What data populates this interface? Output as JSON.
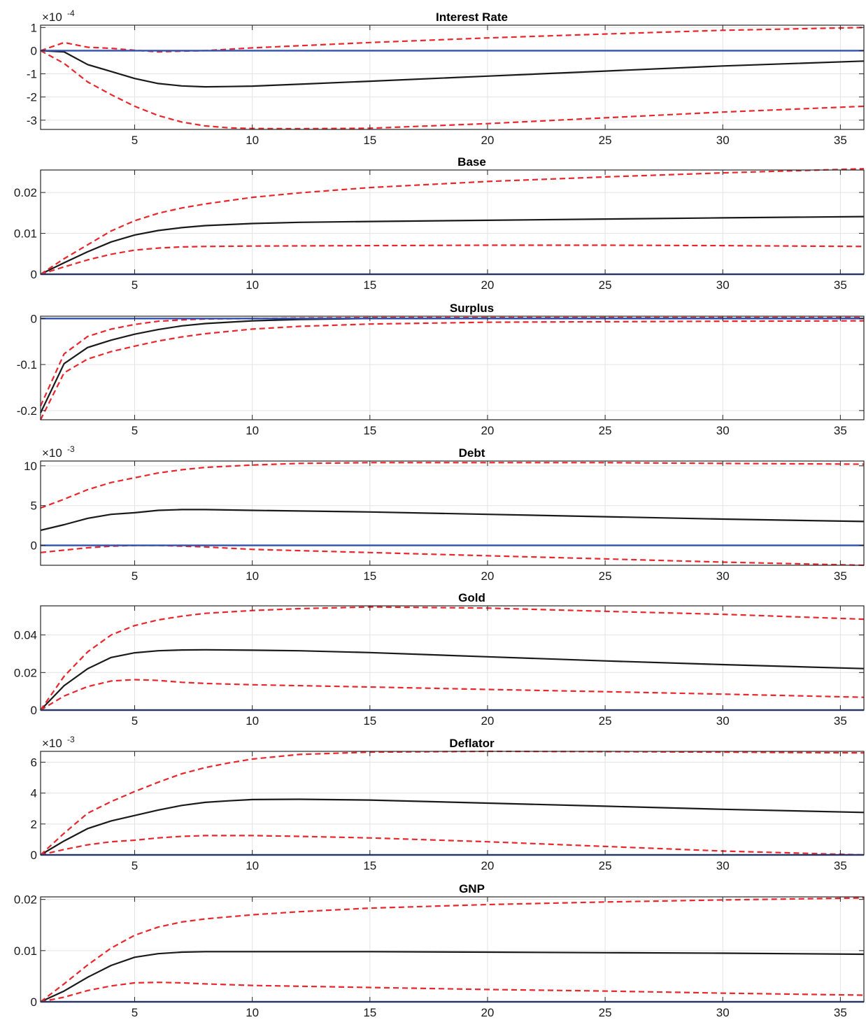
{
  "chart_data": [
    {
      "type": "line",
      "title": "Interest Rate",
      "multiplier": {
        "base": "×10",
        "exponent": "-4"
      },
      "xlim": [
        1,
        36
      ],
      "ylim": [
        -3.4,
        1.1
      ],
      "xticks": [
        5,
        10,
        15,
        20,
        25,
        30,
        35
      ],
      "yticks": [
        -3,
        -2,
        -1,
        0,
        1
      ],
      "ytick_labels": [
        "-3",
        "-2",
        "-1",
        "0",
        "1"
      ],
      "grid": true,
      "series": [
        {
          "style": "response",
          "color": "#1a1a1a",
          "dashed": false,
          "x": [
            1,
            2,
            3,
            4,
            5,
            6,
            7,
            8,
            9,
            10,
            12,
            15,
            20,
            25,
            30,
            36
          ],
          "y": [
            0,
            -0.05,
            -0.6,
            -0.9,
            -1.2,
            -1.42,
            -1.52,
            -1.56,
            -1.55,
            -1.53,
            -1.45,
            -1.32,
            -1.1,
            -0.88,
            -0.66,
            -0.45
          ]
        },
        {
          "style": "upper",
          "color": "#e8262c",
          "dashed": true,
          "x": [
            1,
            2,
            3,
            4,
            5,
            6,
            7,
            8,
            10,
            15,
            20,
            25,
            30,
            36
          ],
          "y": [
            0,
            0.35,
            0.15,
            0.1,
            0.02,
            -0.05,
            -0.02,
            0.0,
            0.12,
            0.35,
            0.55,
            0.72,
            0.88,
            1.0
          ]
        },
        {
          "style": "lower",
          "color": "#e8262c",
          "dashed": true,
          "x": [
            1,
            2,
            3,
            4,
            5,
            6,
            7,
            8,
            9,
            10,
            12,
            15,
            20,
            25,
            30,
            36
          ],
          "y": [
            0,
            -0.55,
            -1.35,
            -1.9,
            -2.4,
            -2.8,
            -3.08,
            -3.25,
            -3.33,
            -3.36,
            -3.37,
            -3.35,
            -3.15,
            -2.9,
            -2.65,
            -2.4
          ]
        },
        {
          "style": "zero",
          "color": "#3050b0",
          "dashed": false,
          "x": [
            1,
            36
          ],
          "y": [
            0,
            0
          ]
        }
      ]
    },
    {
      "type": "line",
      "title": "Base",
      "xlim": [
        1,
        36
      ],
      "ylim": [
        0,
        0.0255
      ],
      "xticks": [
        5,
        10,
        15,
        20,
        25,
        30,
        35
      ],
      "yticks": [
        0,
        0.01,
        0.02
      ],
      "ytick_labels": [
        "0",
        "0.01",
        "0.02"
      ],
      "grid": true,
      "series": [
        {
          "style": "response",
          "color": "#1a1a1a",
          "dashed": false,
          "x": [
            1,
            2,
            3,
            4,
            5,
            6,
            7,
            8,
            10,
            12,
            15,
            20,
            25,
            30,
            36
          ],
          "y": [
            0,
            0.0028,
            0.0055,
            0.0079,
            0.0096,
            0.0107,
            0.0114,
            0.0119,
            0.0124,
            0.0127,
            0.0129,
            0.0132,
            0.0135,
            0.0138,
            0.0141
          ]
        },
        {
          "style": "upper",
          "color": "#e8262c",
          "dashed": true,
          "x": [
            1,
            2,
            3,
            4,
            5,
            6,
            7,
            8,
            10,
            12,
            15,
            20,
            25,
            30,
            36
          ],
          "y": [
            0,
            0.0038,
            0.0072,
            0.0106,
            0.0131,
            0.0149,
            0.0162,
            0.0172,
            0.0188,
            0.0199,
            0.0212,
            0.0227,
            0.0238,
            0.0248,
            0.0258
          ]
        },
        {
          "style": "lower",
          "color": "#e8262c",
          "dashed": true,
          "x": [
            1,
            2,
            3,
            4,
            5,
            6,
            7,
            8,
            10,
            15,
            20,
            25,
            30,
            36
          ],
          "y": [
            0,
            0.0018,
            0.0035,
            0.0049,
            0.0059,
            0.0064,
            0.0067,
            0.0068,
            0.0069,
            0.007,
            0.0071,
            0.0071,
            0.007,
            0.0068
          ]
        },
        {
          "style": "zero",
          "color": "#3050b0",
          "dashed": false,
          "x": [
            1,
            36
          ],
          "y": [
            0,
            0
          ]
        }
      ]
    },
    {
      "type": "line",
      "title": "Surplus",
      "xlim": [
        1,
        36
      ],
      "ylim": [
        -0.22,
        0.005
      ],
      "xticks": [
        5,
        10,
        15,
        20,
        25,
        30,
        35
      ],
      "yticks": [
        -0.2,
        -0.1,
        0
      ],
      "ytick_labels": [
        "-0.2",
        "-0.1",
        "0"
      ],
      "grid": true,
      "series": [
        {
          "style": "response",
          "color": "#1a1a1a",
          "dashed": false,
          "x": [
            1,
            2,
            3,
            4,
            5,
            6,
            7,
            8,
            10,
            12,
            15,
            20,
            36
          ],
          "y": [
            -0.205,
            -0.098,
            -0.063,
            -0.047,
            -0.034,
            -0.024,
            -0.016,
            -0.011,
            -0.005,
            -0.002,
            0,
            0,
            0
          ]
        },
        {
          "style": "upper",
          "color": "#e8262c",
          "dashed": true,
          "x": [
            1,
            2,
            3,
            4,
            5,
            6,
            7,
            8,
            10,
            12,
            15,
            20,
            36
          ],
          "y": [
            -0.19,
            -0.077,
            -0.039,
            -0.023,
            -0.013,
            -0.006,
            -0.003,
            -0.001,
            0.0,
            0.001,
            0.002,
            0.002,
            0.002
          ]
        },
        {
          "style": "lower",
          "color": "#e8262c",
          "dashed": true,
          "x": [
            1,
            2,
            3,
            4,
            5,
            6,
            7,
            8,
            10,
            12,
            15,
            20,
            25,
            30,
            36
          ],
          "y": [
            -0.22,
            -0.118,
            -0.088,
            -0.072,
            -0.06,
            -0.049,
            -0.04,
            -0.033,
            -0.023,
            -0.017,
            -0.012,
            -0.008,
            -0.007,
            -0.006,
            -0.005
          ]
        },
        {
          "style": "zero",
          "color": "#3050b0",
          "dashed": false,
          "x": [
            1,
            36
          ],
          "y": [
            0,
            0
          ]
        }
      ]
    },
    {
      "type": "line",
      "title": "Debt",
      "multiplier": {
        "base": "×10",
        "exponent": "-3"
      },
      "xlim": [
        1,
        36
      ],
      "ylim": [
        -2.5,
        10.6
      ],
      "xticks": [
        5,
        10,
        15,
        20,
        25,
        30,
        35
      ],
      "yticks": [
        0,
        5,
        10
      ],
      "ytick_labels": [
        "0",
        "5",
        "10"
      ],
      "grid": true,
      "series": [
        {
          "style": "response",
          "color": "#1a1a1a",
          "dashed": false,
          "x": [
            1,
            2,
            3,
            4,
            5,
            6,
            7,
            8,
            10,
            15,
            20,
            25,
            30,
            36
          ],
          "y": [
            1.9,
            2.6,
            3.4,
            3.9,
            4.1,
            4.4,
            4.5,
            4.5,
            4.4,
            4.2,
            3.9,
            3.6,
            3.3,
            3.0
          ]
        },
        {
          "style": "upper",
          "color": "#e8262c",
          "dashed": true,
          "x": [
            1,
            2,
            3,
            4,
            5,
            6,
            7,
            8,
            10,
            12,
            15,
            20,
            25,
            30,
            36
          ],
          "y": [
            4.7,
            5.8,
            7.0,
            7.9,
            8.5,
            9.1,
            9.5,
            9.8,
            10.1,
            10.3,
            10.4,
            10.4,
            10.4,
            10.3,
            10.2
          ]
        },
        {
          "style": "lower",
          "color": "#e8262c",
          "dashed": true,
          "x": [
            1,
            2,
            3,
            4,
            5,
            6,
            7,
            8,
            10,
            15,
            20,
            25,
            30,
            36
          ],
          "y": [
            -0.9,
            -0.6,
            -0.3,
            -0.1,
            0.0,
            0.0,
            -0.1,
            -0.2,
            -0.5,
            -0.9,
            -1.3,
            -1.7,
            -2.1,
            -2.5
          ]
        },
        {
          "style": "zero",
          "color": "#3050b0",
          "dashed": false,
          "x": [
            1,
            36
          ],
          "y": [
            0,
            0
          ]
        }
      ]
    },
    {
      "type": "line",
      "title": "Gold",
      "xlim": [
        1,
        36
      ],
      "ylim": [
        0,
        0.0555
      ],
      "xticks": [
        5,
        10,
        15,
        20,
        25,
        30,
        35
      ],
      "yticks": [
        0,
        0.02,
        0.04
      ],
      "ytick_labels": [
        "0",
        "0.02",
        "0.04"
      ],
      "grid": true,
      "series": [
        {
          "style": "response",
          "color": "#1a1a1a",
          "dashed": false,
          "x": [
            1,
            2,
            3,
            4,
            5,
            6,
            7,
            8,
            10,
            12,
            15,
            20,
            25,
            30,
            36
          ],
          "y": [
            0,
            0.013,
            0.022,
            0.028,
            0.0305,
            0.0316,
            0.032,
            0.0321,
            0.0319,
            0.0316,
            0.0306,
            0.0284,
            0.0262,
            0.0242,
            0.0221
          ]
        },
        {
          "style": "upper",
          "color": "#e8262c",
          "dashed": true,
          "x": [
            1,
            2,
            3,
            4,
            5,
            6,
            7,
            8,
            10,
            12,
            15,
            20,
            25,
            30,
            36
          ],
          "y": [
            0,
            0.018,
            0.031,
            0.04,
            0.045,
            0.048,
            0.05,
            0.0515,
            0.053,
            0.054,
            0.0549,
            0.0543,
            0.0526,
            0.051,
            0.0484
          ]
        },
        {
          "style": "lower",
          "color": "#e8262c",
          "dashed": true,
          "x": [
            1,
            2,
            3,
            4,
            5,
            6,
            7,
            8,
            10,
            15,
            20,
            25,
            30,
            36
          ],
          "y": [
            0,
            0.0075,
            0.0125,
            0.0155,
            0.0162,
            0.0158,
            0.0148,
            0.0142,
            0.0135,
            0.0123,
            0.011,
            0.0098,
            0.0085,
            0.0068
          ]
        },
        {
          "style": "zero",
          "color": "#3050b0",
          "dashed": false,
          "x": [
            1,
            36
          ],
          "y": [
            0,
            0
          ]
        }
      ]
    },
    {
      "type": "line",
      "title": "Deflator",
      "multiplier": {
        "base": "×10",
        "exponent": "-3"
      },
      "xlim": [
        1,
        36
      ],
      "ylim": [
        0,
        6.7
      ],
      "xticks": [
        5,
        10,
        15,
        20,
        25,
        30,
        35
      ],
      "yticks": [
        0,
        2,
        4,
        6
      ],
      "ytick_labels": [
        "0",
        "2",
        "4",
        "6"
      ],
      "grid": true,
      "series": [
        {
          "style": "response",
          "color": "#1a1a1a",
          "dashed": false,
          "x": [
            1,
            2,
            3,
            4,
            5,
            6,
            7,
            8,
            9,
            10,
            12,
            15,
            20,
            25,
            30,
            36
          ],
          "y": [
            0,
            0.9,
            1.7,
            2.2,
            2.55,
            2.9,
            3.2,
            3.4,
            3.5,
            3.58,
            3.6,
            3.55,
            3.35,
            3.15,
            2.95,
            2.75
          ]
        },
        {
          "style": "upper",
          "color": "#e8262c",
          "dashed": true,
          "x": [
            1,
            2,
            3,
            4,
            5,
            6,
            7,
            8,
            9,
            10,
            12,
            15,
            20,
            25,
            30,
            36
          ],
          "y": [
            0,
            1.4,
            2.7,
            3.45,
            4.1,
            4.7,
            5.25,
            5.65,
            5.95,
            6.2,
            6.5,
            6.65,
            6.7,
            6.68,
            6.65,
            6.6
          ]
        },
        {
          "style": "lower",
          "color": "#e8262c",
          "dashed": true,
          "x": [
            1,
            2,
            3,
            4,
            5,
            6,
            7,
            8,
            10,
            12,
            15,
            20,
            25,
            30,
            36
          ],
          "y": [
            0,
            0.35,
            0.65,
            0.85,
            0.95,
            1.1,
            1.2,
            1.25,
            1.25,
            1.2,
            1.1,
            0.85,
            0.55,
            0.25,
            0.0
          ]
        },
        {
          "style": "zero",
          "color": "#3050b0",
          "dashed": false,
          "x": [
            1,
            36
          ],
          "y": [
            0,
            0
          ]
        }
      ]
    },
    {
      "type": "line",
      "title": "GNP",
      "xlim": [
        1,
        36
      ],
      "ylim": [
        0,
        0.0205
      ],
      "xticks": [
        5,
        10,
        15,
        20,
        25,
        30,
        35
      ],
      "yticks": [
        0,
        0.01,
        0.02
      ],
      "ytick_labels": [
        "0",
        "0.01",
        "0.02"
      ],
      "grid": true,
      "series": [
        {
          "style": "response",
          "color": "#1a1a1a",
          "dashed": false,
          "x": [
            1,
            2,
            3,
            4,
            5,
            6,
            7,
            8,
            10,
            15,
            20,
            25,
            30,
            36
          ],
          "y": [
            0,
            0.0021,
            0.0048,
            0.0071,
            0.0087,
            0.0094,
            0.0097,
            0.0098,
            0.0098,
            0.0098,
            0.0097,
            0.0096,
            0.0095,
            0.0093
          ]
        },
        {
          "style": "upper",
          "color": "#e8262c",
          "dashed": true,
          "x": [
            1,
            2,
            3,
            4,
            5,
            6,
            7,
            8,
            10,
            12,
            15,
            20,
            25,
            30,
            36
          ],
          "y": [
            0,
            0.0035,
            0.0072,
            0.0105,
            0.013,
            0.0146,
            0.0156,
            0.0162,
            0.017,
            0.0176,
            0.0183,
            0.019,
            0.0195,
            0.0199,
            0.0203
          ]
        },
        {
          "style": "lower",
          "color": "#e8262c",
          "dashed": true,
          "x": [
            1,
            2,
            3,
            4,
            5,
            6,
            7,
            8,
            10,
            15,
            20,
            25,
            30,
            36
          ],
          "y": [
            0,
            0.0009,
            0.0022,
            0.0031,
            0.0037,
            0.0038,
            0.0037,
            0.0035,
            0.0032,
            0.0028,
            0.0024,
            0.0021,
            0.0017,
            0.0013
          ]
        },
        {
          "style": "zero",
          "color": "#3050b0",
          "dashed": false,
          "x": [
            1,
            36
          ],
          "y": [
            0,
            0
          ]
        }
      ]
    }
  ]
}
